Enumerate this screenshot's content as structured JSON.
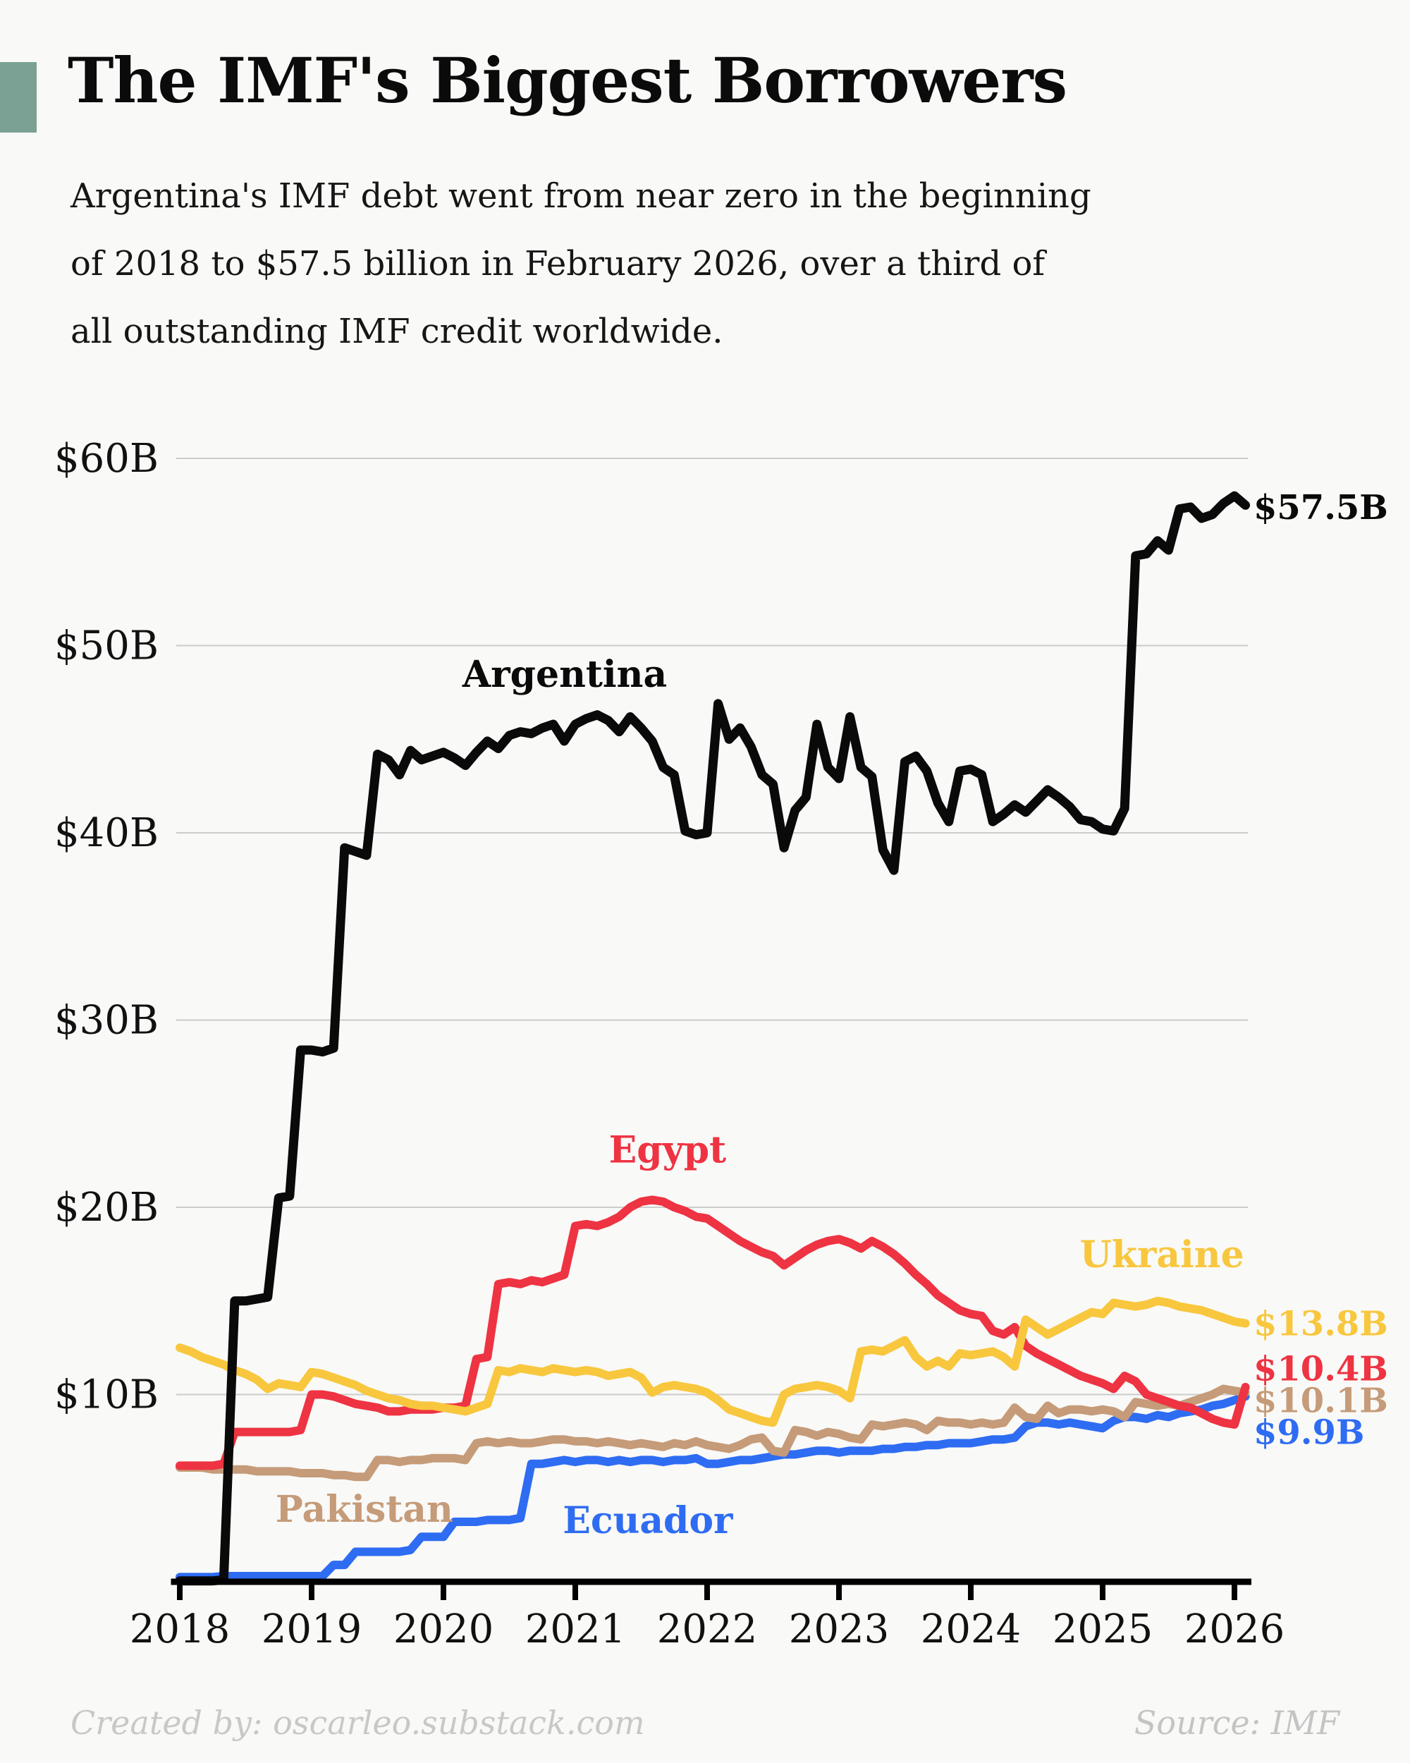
{
  "header": {
    "title": "The IMF's Biggest Borrowers",
    "subtitle_lines": [
      "Argentina's IMF debt went from near zero in the beginning",
      "of 2018 to $57.5 billion in February 2026, over a third of",
      "all outstanding IMF credit worldwide."
    ],
    "accent_color": "#7ba195"
  },
  "footer": {
    "credit": "Created by: oscarleo.substack.com",
    "source": "Source: IMF"
  },
  "chart_data": {
    "type": "line",
    "title": "The IMF's Biggest Borrowers",
    "x_start_year": 2018,
    "x_step_months": 1,
    "xlim": [
      2018.0,
      2026.083
    ],
    "ylim": [
      0,
      63
    ],
    "grid": "horizontal",
    "legend": "inline-labels",
    "background": "#f9f9f7",
    "grid_color": "#cccccc",
    "x_axis_ticks": [
      2018,
      2019,
      2020,
      2021,
      2022,
      2023,
      2024,
      2025,
      2026
    ],
    "y_axis_ticks": [
      {
        "value": 10,
        "label": "$10B"
      },
      {
        "value": 20,
        "label": "$20B"
      },
      {
        "value": 30,
        "label": "$30B"
      },
      {
        "value": 40,
        "label": "$40B"
      },
      {
        "value": 50,
        "label": "$50B"
      },
      {
        "value": 60,
        "label": "$60B"
      }
    ],
    "series": [
      {
        "name": "Ecuador",
        "color": "#2e6cf2",
        "stroke_width": 12,
        "label": {
          "text": "Ecuador",
          "x": 2021.55,
          "y": 2.6
        },
        "end_label": {
          "text": "$9.9B",
          "y": 8.0
        },
        "values": [
          0.25,
          0.25,
          0.25,
          0.25,
          0.3,
          0.3,
          0.3,
          0.3,
          0.3,
          0.3,
          0.3,
          0.3,
          0.3,
          0.3,
          0.9,
          0.9,
          1.6,
          1.6,
          1.6,
          1.6,
          1.6,
          1.7,
          2.4,
          2.4,
          2.4,
          3.2,
          3.2,
          3.2,
          3.3,
          3.3,
          3.3,
          3.4,
          6.3,
          6.3,
          6.4,
          6.5,
          6.4,
          6.5,
          6.5,
          6.4,
          6.5,
          6.4,
          6.5,
          6.5,
          6.4,
          6.5,
          6.5,
          6.6,
          6.3,
          6.3,
          6.4,
          6.5,
          6.5,
          6.6,
          6.7,
          6.8,
          6.8,
          6.9,
          7.0,
          7.0,
          6.9,
          7.0,
          7.0,
          7.0,
          7.1,
          7.1,
          7.2,
          7.2,
          7.3,
          7.3,
          7.4,
          7.4,
          7.4,
          7.5,
          7.6,
          7.6,
          7.7,
          8.3,
          8.5,
          8.5,
          8.4,
          8.5,
          8.4,
          8.3,
          8.2,
          8.6,
          8.8,
          8.8,
          8.7,
          8.9,
          8.8,
          9.0,
          9.1,
          9.2,
          9.4,
          9.5,
          9.7,
          9.9
        ]
      },
      {
        "name": "Pakistan",
        "color": "#c59b79",
        "stroke_width": 12,
        "label": {
          "text": "Pakistan",
          "x": 2019.4,
          "y": 3.2
        },
        "end_label": {
          "text": "$10.1B",
          "y": 9.7
        },
        "values": [
          6.1,
          6.1,
          6.1,
          6.0,
          6.0,
          6.0,
          6.0,
          5.9,
          5.9,
          5.9,
          5.9,
          5.8,
          5.8,
          5.8,
          5.7,
          5.7,
          5.6,
          5.6,
          6.5,
          6.5,
          6.4,
          6.5,
          6.5,
          6.6,
          6.6,
          6.6,
          6.5,
          7.4,
          7.5,
          7.4,
          7.5,
          7.4,
          7.4,
          7.5,
          7.6,
          7.6,
          7.5,
          7.5,
          7.4,
          7.5,
          7.4,
          7.3,
          7.4,
          7.3,
          7.2,
          7.4,
          7.3,
          7.5,
          7.3,
          7.2,
          7.1,
          7.3,
          7.6,
          7.7,
          7.0,
          6.9,
          8.1,
          8.0,
          7.8,
          8.0,
          7.9,
          7.7,
          7.6,
          8.4,
          8.3,
          8.4,
          8.5,
          8.4,
          8.1,
          8.6,
          8.5,
          8.5,
          8.4,
          8.5,
          8.4,
          8.5,
          9.3,
          8.8,
          8.7,
          9.4,
          9.0,
          9.2,
          9.2,
          9.1,
          9.2,
          9.1,
          8.8,
          9.6,
          9.5,
          9.4,
          9.5,
          9.4,
          9.6,
          9.8,
          10.0,
          10.3,
          10.2,
          10.1
        ]
      },
      {
        "name": "Egypt",
        "color": "#ee3342",
        "stroke_width": 12,
        "label": {
          "text": "Egypt",
          "x": 2021.7,
          "y": 22.4
        },
        "end_label": {
          "text": "$10.4B",
          "y": 11.4
        },
        "values": [
          6.2,
          6.2,
          6.2,
          6.2,
          6.3,
          8.0,
          8.0,
          8.0,
          8.0,
          8.0,
          8.0,
          8.1,
          10.0,
          10.0,
          9.9,
          9.7,
          9.5,
          9.4,
          9.3,
          9.1,
          9.1,
          9.2,
          9.2,
          9.2,
          9.3,
          9.3,
          9.4,
          11.9,
          12.0,
          15.9,
          16.0,
          15.9,
          16.1,
          16.0,
          16.2,
          16.4,
          19.0,
          19.1,
          19.0,
          19.2,
          19.5,
          20.0,
          20.3,
          20.4,
          20.3,
          20.0,
          19.8,
          19.5,
          19.4,
          19.0,
          18.6,
          18.2,
          17.9,
          17.6,
          17.4,
          16.9,
          17.3,
          17.7,
          18.0,
          18.2,
          18.3,
          18.1,
          17.8,
          18.2,
          17.9,
          17.5,
          17.0,
          16.4,
          15.9,
          15.3,
          14.9,
          14.5,
          14.3,
          14.2,
          13.4,
          13.2,
          13.6,
          12.6,
          12.2,
          11.9,
          11.6,
          11.3,
          11.0,
          10.8,
          10.6,
          10.3,
          11.0,
          10.7,
          10.0,
          9.8,
          9.6,
          9.4,
          9.3,
          9.0,
          8.7,
          8.5,
          8.4,
          10.4
        ]
      },
      {
        "name": "Ukraine",
        "color": "#f8c73e",
        "stroke_width": 12,
        "label": {
          "text": "Ukraine",
          "x": 2025.45,
          "y": 16.8
        },
        "end_label": {
          "text": "$13.8B",
          "y": 13.8
        },
        "values": [
          12.5,
          12.3,
          12.0,
          11.8,
          11.6,
          11.3,
          11.1,
          10.8,
          10.3,
          10.6,
          10.5,
          10.4,
          11.2,
          11.1,
          10.9,
          10.7,
          10.5,
          10.2,
          10.0,
          9.8,
          9.7,
          9.5,
          9.4,
          9.4,
          9.3,
          9.2,
          9.1,
          9.3,
          9.5,
          11.3,
          11.2,
          11.4,
          11.3,
          11.2,
          11.4,
          11.3,
          11.2,
          11.3,
          11.2,
          11.0,
          11.1,
          11.2,
          10.9,
          10.1,
          10.4,
          10.5,
          10.4,
          10.3,
          10.1,
          9.7,
          9.2,
          9.0,
          8.8,
          8.6,
          8.5,
          10.0,
          10.3,
          10.4,
          10.5,
          10.4,
          10.2,
          9.8,
          12.3,
          12.4,
          12.3,
          12.6,
          12.9,
          12.0,
          11.5,
          11.8,
          11.5,
          12.2,
          12.1,
          12.2,
          12.3,
          12.0,
          11.5,
          14.0,
          13.6,
          13.2,
          13.5,
          13.8,
          14.1,
          14.4,
          14.3,
          14.9,
          14.8,
          14.7,
          14.8,
          15.0,
          14.9,
          14.7,
          14.6,
          14.5,
          14.3,
          14.1,
          13.9,
          13.8
        ]
      },
      {
        "name": "Argentina",
        "color": "#0a0a0a",
        "stroke_width": 13,
        "label": {
          "text": "Argentina",
          "x": 2020.92,
          "y": 47.8
        },
        "end_label": {
          "text": "$57.5B",
          "y": 57.4
        },
        "values": [
          0.05,
          0.05,
          0.05,
          0.05,
          0.1,
          15.0,
          15.0,
          15.1,
          15.2,
          20.5,
          20.6,
          28.4,
          28.4,
          28.3,
          28.5,
          39.2,
          39.0,
          38.8,
          44.2,
          43.9,
          43.1,
          44.4,
          43.9,
          44.1,
          44.3,
          44.0,
          43.6,
          44.3,
          44.9,
          44.5,
          45.2,
          45.4,
          45.3,
          45.6,
          45.8,
          44.9,
          45.8,
          46.1,
          46.3,
          46.0,
          45.4,
          46.2,
          45.6,
          44.9,
          43.5,
          43.1,
          40.1,
          39.9,
          40.0,
          46.9,
          45.0,
          45.6,
          44.6,
          43.1,
          42.6,
          39.2,
          41.2,
          41.9,
          45.8,
          43.5,
          42.9,
          46.2,
          43.5,
          43.0,
          39.1,
          38.0,
          43.8,
          44.1,
          43.3,
          41.6,
          40.6,
          43.3,
          43.4,
          43.1,
          40.6,
          41.0,
          41.5,
          41.1,
          41.7,
          42.3,
          41.9,
          41.4,
          40.7,
          40.6,
          40.2,
          40.1,
          41.3,
          54.8,
          54.9,
          55.6,
          55.1,
          57.3,
          57.4,
          56.8,
          57.0,
          57.6,
          58.0,
          57.5
        ]
      }
    ]
  }
}
